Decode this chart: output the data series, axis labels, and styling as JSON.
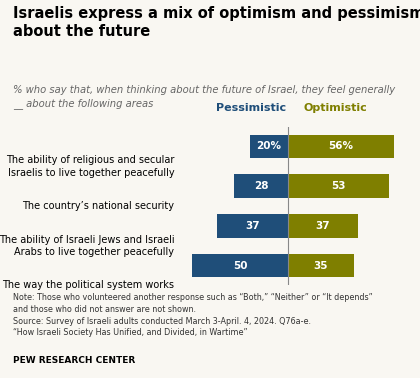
{
  "title": "Israelis express a mix of optimism and pessimism\nabout the future",
  "subtitle": "% who say that, when thinking about the future of Israel, they feel generally\n__ about the following areas",
  "categories": [
    "The ability of religious and secular\nIsraelis to live together peacefully",
    "The country’s national security",
    "The ability of Israeli Jews and Israeli\nArabs to live together peacefully",
    "The way the political system works"
  ],
  "pessimistic": [
    20,
    28,
    37,
    50
  ],
  "optimistic": [
    56,
    53,
    37,
    35
  ],
  "pessimistic_labels": [
    "20%",
    "28",
    "37",
    "50"
  ],
  "optimistic_labels": [
    "56%",
    "53",
    "37",
    "35"
  ],
  "pessimistic_color": "#1f4e79",
  "optimistic_color": "#7f7f00",
  "pessimistic_header": "Pessimistic",
  "optimistic_header": "Optimistic",
  "note": "Note: Those who volunteered another response such as “Both,” “Neither” or “It depends”\nand those who did not answer are not shown.\nSource: Survey of Israeli adults conducted March 3-April. 4, 2024. Q76a-e.\n“How Israeli Society Has Unified, and Divided, in Wartime”",
  "source_label": "PEW RESEARCH CENTER",
  "title_fontsize": 10.5,
  "subtitle_fontsize": 7.2,
  "bar_height": 0.6,
  "background_color": "#f9f7f2",
  "scale": 0.72
}
